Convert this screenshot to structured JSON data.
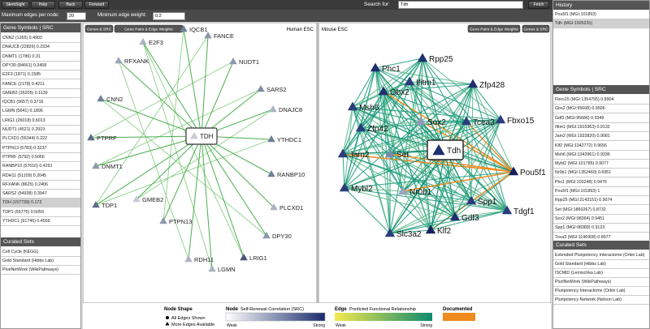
{
  "toolbar": {
    "buttons": [
      "StemSight",
      "Help",
      "Back",
      "Forward"
    ],
    "search_label": "Search for:",
    "search_value": "Tdh",
    "fetch": "Fetch"
  },
  "filters": {
    "max_edges_label": "Maximum edges per node:",
    "max_edges": 20,
    "min_weight_label": "Minimum edge weight:",
    "min_weight": 0.2
  },
  "left_panel": {
    "genes_header": "Gene Symbols | SRC",
    "genes": [
      "CNN2 (1265) 0.4903",
      "DNAJC8 (22826) 0.2334",
      "DNMT1 (1786) 0.31",
      "DPY30 (84661) 0.3458",
      "E2F3 (1871) 0.1585",
      "FANCE (2178) 0.4211",
      "GMEB2 (26205) 0.1139",
      "IQCB1 (9657) 0.3716",
      "LGMN (5641) 0.1896",
      "LRIG1 (26018) 0.6013",
      "NUDT1 (4521) 0.2919",
      "PLCXD1 (55344) 0.222",
      "PTPN13 (5783) 0.3237",
      "PTPRF (5792) 0.5066",
      "RANBP10 (57610) 0.4291",
      "RDH11 (51109) 0.2045",
      "RFXANK (8625) 0.2406",
      "SARS2 (54938) 0.3947",
      "TDH (157739) 0.172",
      "TDP1 (55775) 0.5059",
      "YTHDC1 (91746) 0.4569"
    ],
    "curated_header": "Curated Sets",
    "curated": [
      "Cell Cycle (KEGG)",
      "Gold Standard (Hibbs Lab)",
      "PluriNetWork (WikiPathways)"
    ]
  },
  "right_panel": {
    "history_header": "History",
    "history": [
      "Pou5f1 (MGI:101893)",
      "Tdh (MGI:1926231)"
    ],
    "genes_header": "Gene Symbols | SRC",
    "genes": [
      "Fbxo15 (MGI:1354755) 0.8904",
      "Gbx2 (MGI:95668) 0.9506",
      "Gdf3 (MGI:95686) 0.9349",
      "Ifitm1 (MGI:1915963) 0.9132",
      "Jam2 (MGI:1933820) 0.9081",
      "Klf2 (MGI:1342772) 0.9656",
      "Msh6 (MGI:1343961) 0.9336",
      "Mybl2 (MGI:101785) 0.9077",
      "Nr0b1 (MGI:1352460) 0.6951",
      "Phc1 (MGI:103248) 0.9476",
      "Pou5f1 (MGI:101893) 1",
      "Rpp25 (MGI:2143151) 0.9074",
      "Set (MGI:1860267) 0.8732",
      "Sox2 (MGI:98364) 0.9451",
      "Spp1 (MGI:98389) 0.9123",
      "Tcea3 (MGI:1196908) 0.8977"
    ],
    "curated_header": "Curated Sets",
    "curated": [
      "Extended Pluripotency Interactome (Orkin Lab)",
      "Gold Standard (Hibbs Lab)",
      "ISCMiD (Lemischka Lab)",
      "PluriNetWork (WikiPathways)",
      "Pluripotency Interactome (Orkin Lab)",
      "Pluripotency Network (Nelson Lab)"
    ]
  },
  "human": {
    "title": "Human ESC",
    "buttons": [
      "Genes & SRC",
      "Gene Pairs & Edge Weights"
    ],
    "center": "TDH",
    "nodes": [
      "IQCB1",
      "FANCE",
      "E2F3",
      "NUDT1",
      "RFXANK",
      "SARS2",
      "CNN2",
      "DNAJC8",
      "PTPRF",
      "YTHDC1",
      "DNMT1",
      "RANBP10",
      "TDP1",
      "PLCXD1",
      "GMEB2",
      "DPY30",
      "PTPN13",
      "LRIG1",
      "RDH11",
      "LGMN"
    ]
  },
  "mouse": {
    "title": "Mouse ESC",
    "buttons": [
      "Gene Pairs & Edge Weights",
      "Genes & SRC"
    ],
    "center": "Tdh",
    "nodes": [
      "Phc1",
      "Rpp25",
      "Ifitm1",
      "Zfp428",
      "Gbx2",
      "Msh6",
      "Sox2",
      "Tcea3",
      "Fbxo15",
      "Zfp42",
      "Jam2",
      "Set",
      "Pou5f1",
      "Mybl2",
      "Nr0b1",
      "Spp1",
      "Tdgf1",
      "Gdf3",
      "Slc3a2",
      "Klf2"
    ]
  },
  "legend": {
    "node_shape": "Node Shape",
    "all_edges": "All Edges Shown",
    "more_edges": "More Edges Available",
    "node": "Node",
    "node_desc": "Self-Renewal Correlation (SRC)",
    "node_weak": "Weak",
    "node_strong": "Strong",
    "edge": "Edge",
    "edge_desc": "Predicted Functional Relationship",
    "edge_weak": "Weak",
    "edge_strong": "Strong",
    "documented": "Documented"
  }
}
